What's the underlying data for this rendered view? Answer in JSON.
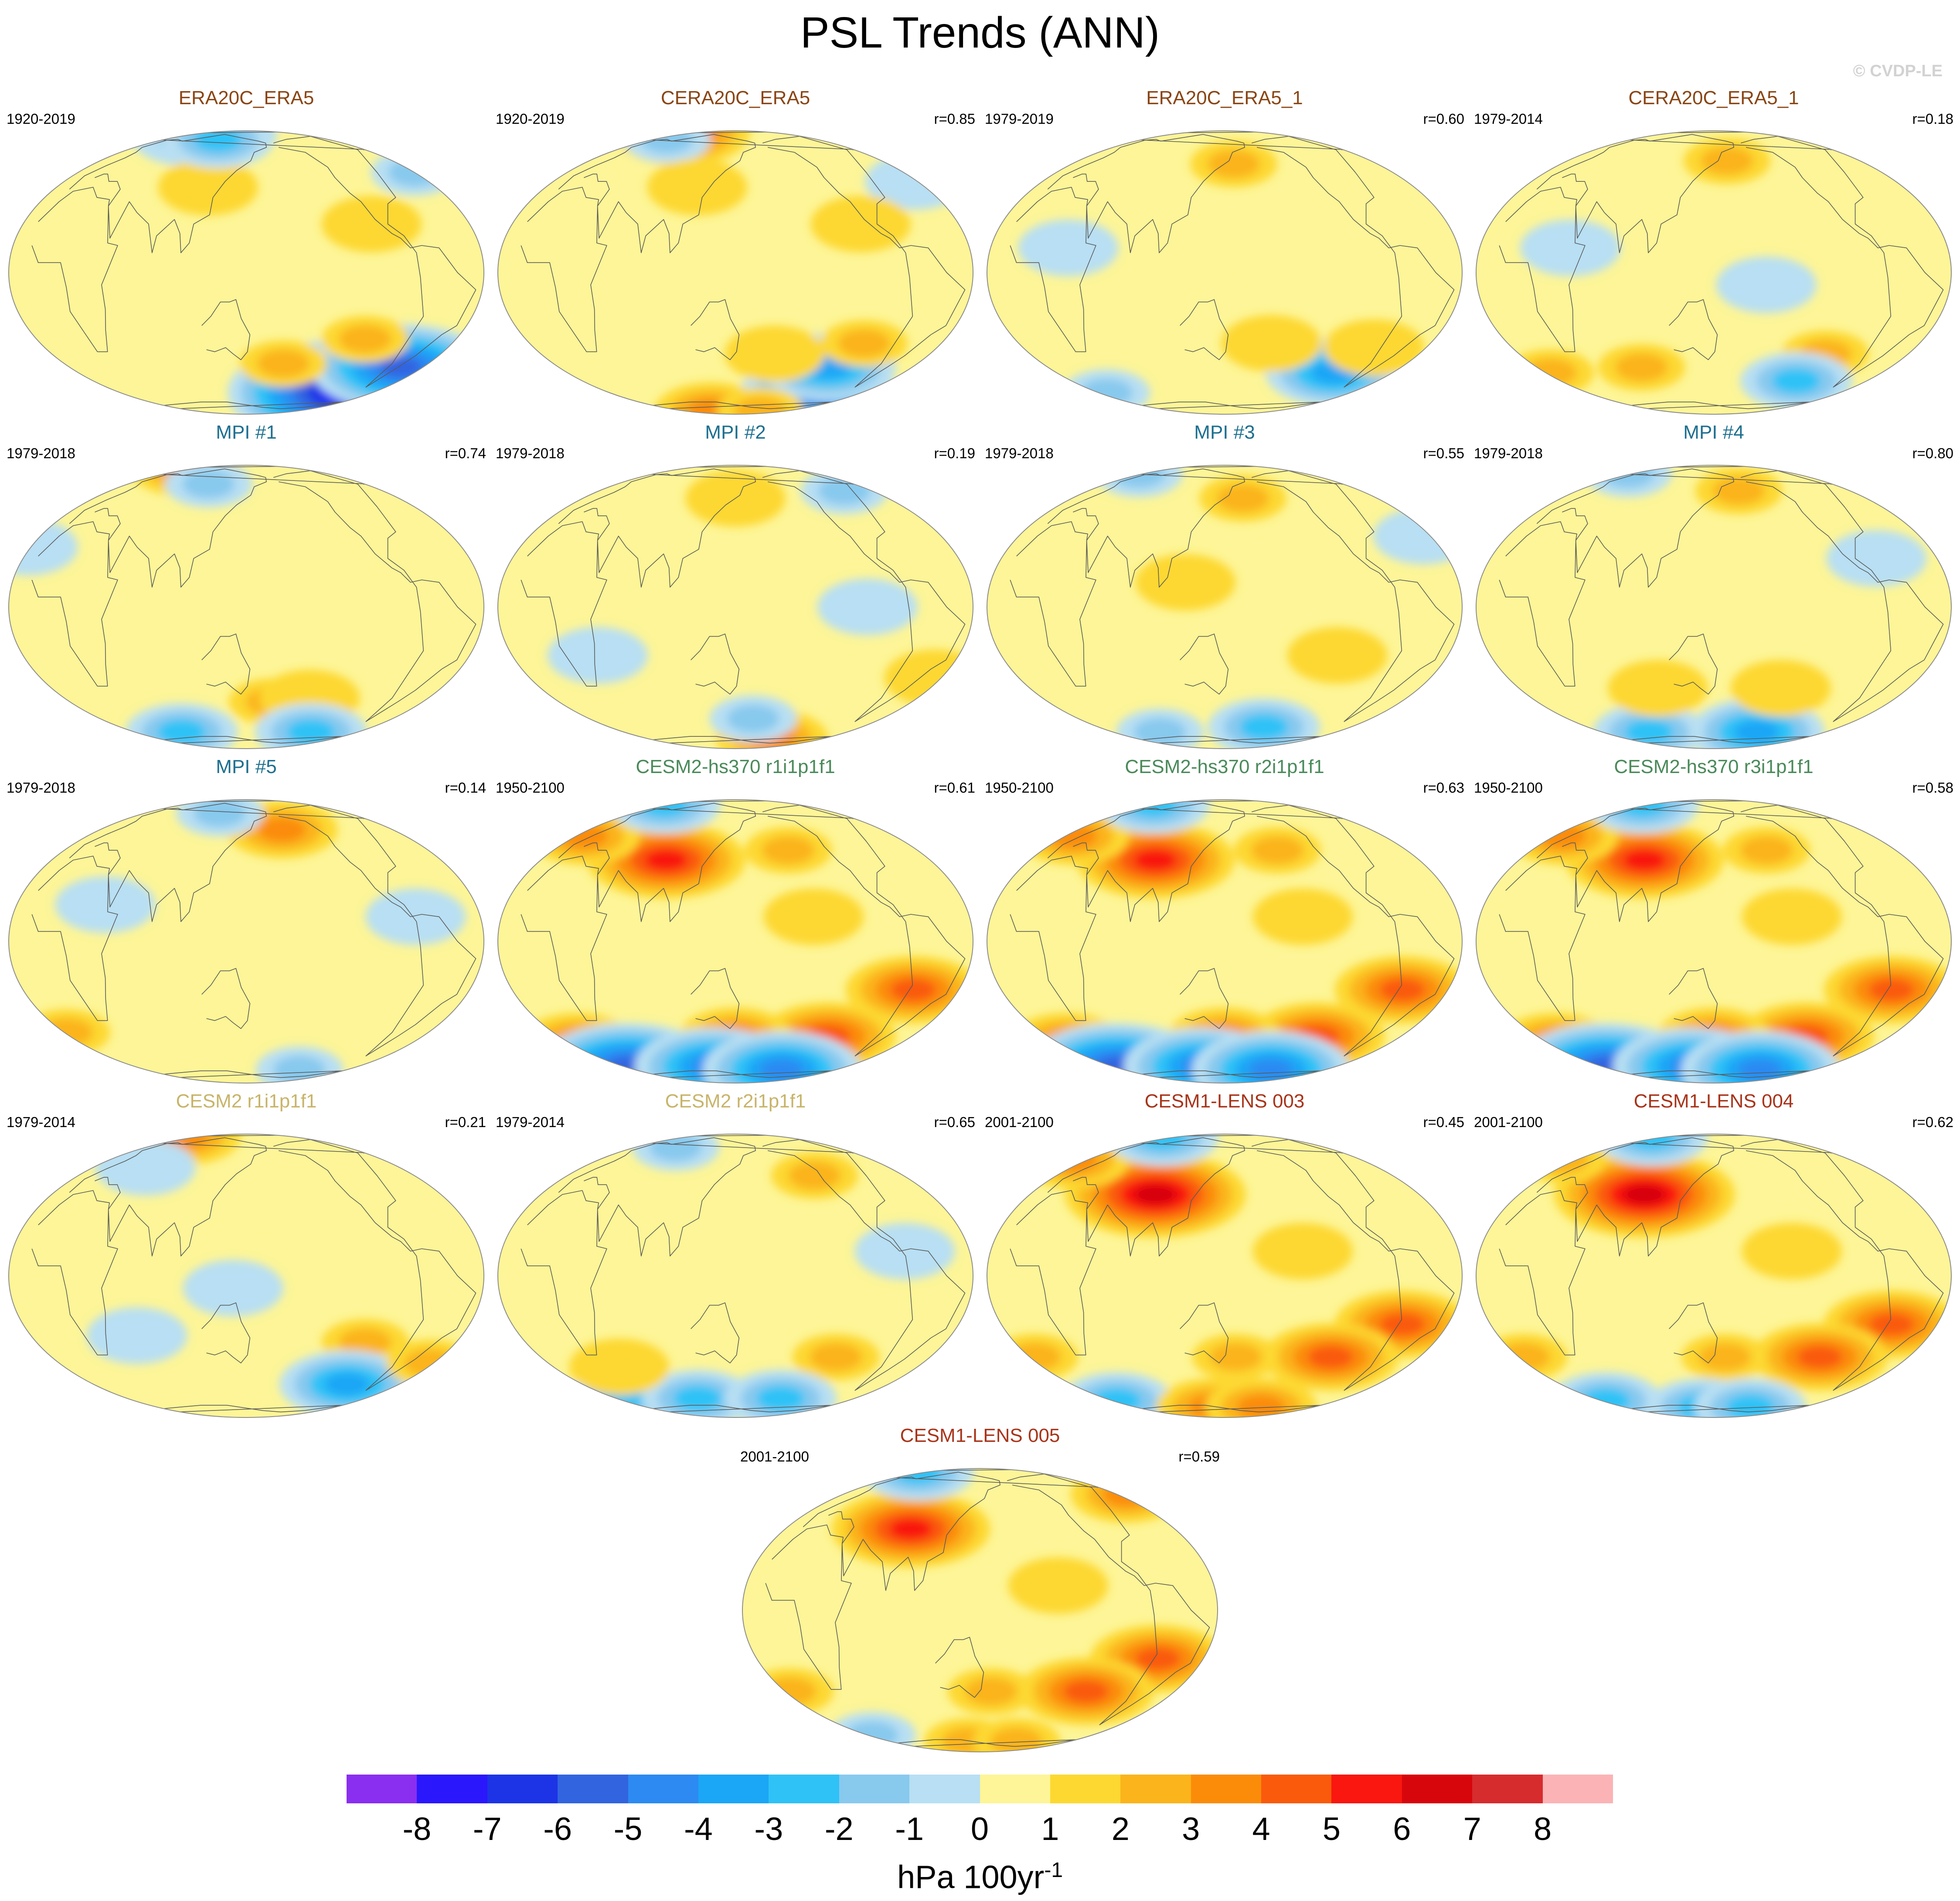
{
  "title": "PSL Trends (ANN)",
  "watermark": "© CVDP-LE",
  "palette": {
    "ocean": "#fdf597",
    "coast": "#5a5a5a",
    "outline": "#8c8c8c",
    "levels": [
      "#8a2ef0",
      "#2a17fb",
      "#1c34e6",
      "#3264e0",
      "#2c8af2",
      "#1ba6f6",
      "#2fc2f6",
      "#88c9ee",
      "#b8dff3",
      "#fdf597",
      "#fdd831",
      "#fbb41b",
      "#fb8c0a",
      "#fa5a0c",
      "#f9170f",
      "#d7050c",
      "#d62c2e",
      "#fbb3b6"
    ]
  },
  "chart_data": {
    "type": "map",
    "title": "PSL Trends (ANN)",
    "units": "hPa 100yr-1",
    "colorbar": {
      "ticks": [
        "-8",
        "-7",
        "-6",
        "-5",
        "-4",
        "-3",
        "-2",
        "-1",
        "0",
        "1",
        "2",
        "3",
        "4",
        "5",
        "6",
        "7",
        "8"
      ],
      "units_base": "hPa 100yr",
      "units_exp": "-1"
    },
    "panels": [
      {
        "name": "ERA20C_ERA5",
        "period": "1920-2019",
        "r": "",
        "color": "#8a4513",
        "features": [
          [
            -10,
            83,
            3
          ],
          [
            35,
            73,
            -3
          ],
          [
            60,
            78,
            -4
          ],
          [
            -40,
            45,
            -2
          ],
          [
            -90,
            -58,
            -8
          ],
          [
            -60,
            -42,
            -6
          ],
          [
            -110,
            -28,
            2
          ],
          [
            -175,
            -40,
            2
          ],
          [
            115,
            37,
            1
          ],
          [
            -110,
            20,
            1
          ],
          [
            100,
            70,
            -3
          ]
        ]
      },
      {
        "name": "CERA20C_ERA5",
        "period": "1920-2019",
        "r": "r=0.85",
        "color": "#8a4513",
        "features": [
          [
            -10,
            82,
            4
          ],
          [
            30,
            70,
            -2
          ],
          [
            -40,
            40,
            -1
          ],
          [
            -100,
            -60,
            -5
          ],
          [
            -120,
            -42,
            -4
          ],
          [
            -100,
            -30,
            2
          ],
          [
            -175,
            -35,
            1
          ],
          [
            90,
            -78,
            3
          ],
          [
            -150,
            -78,
            2
          ],
          [
            115,
            37,
            1
          ],
          [
            -110,
            20,
            1
          ]
        ]
      },
      {
        "name": "ERA20C_ERA5_1",
        "period": "1979-2019",
        "r": "r=0.60",
        "color": "#8a4513",
        "features": [
          [
            160,
            50,
            2
          ],
          [
            -100,
            -45,
            -4
          ],
          [
            -80,
            -32,
            1
          ],
          [
            -170,
            -30,
            1
          ],
          [
            0,
            -58,
            -2
          ],
          [
            30,
            10,
            -1
          ],
          [
            -160,
            5,
            0
          ]
        ]
      },
      {
        "name": "CERA20C_ERA5_1",
        "period": "1979-2014",
        "r": "r=0.18",
        "color": "#8a4513",
        "features": [
          [
            165,
            52,
            2
          ],
          [
            -110,
            -35,
            2
          ],
          [
            -120,
            -50,
            -3
          ],
          [
            -15,
            -45,
            2
          ],
          [
            80,
            -42,
            2
          ],
          [
            -170,
            -5,
            -1
          ],
          [
            40,
            10,
            -1
          ]
        ]
      },
      {
        "name": "MPI #1",
        "period": "1979-2018",
        "r": "r=0.74",
        "color": "#1d6f8f",
        "features": [
          [
            -15,
            80,
            3
          ],
          [
            175,
            -42,
            2
          ],
          [
            -150,
            -40,
            1
          ],
          [
            -120,
            -62,
            -3
          ],
          [
            60,
            -62,
            -3
          ],
          [
            100,
            60,
            -2
          ],
          [
            -30,
            25,
            -1
          ]
        ]
      },
      {
        "name": "MPI #2",
        "period": "1979-2018",
        "r": "r=0.19",
        "color": "#1d6f8f",
        "features": [
          [
            -150,
            -68,
            3
          ],
          [
            170,
            -52,
            -2
          ],
          [
            -80,
            55,
            -2
          ],
          [
            150,
            50,
            1
          ],
          [
            -40,
            -30,
            1
          ],
          [
            40,
            -20,
            -1
          ],
          [
            -110,
            0,
            -1
          ]
        ]
      },
      {
        "name": "MPI #3",
        "period": "1979-2018",
        "r": "r=0.55",
        "color": "#1d6f8f",
        "features": [
          [
            0,
            70,
            -2
          ],
          [
            170,
            50,
            2
          ],
          [
            -160,
            -58,
            -3
          ],
          [
            60,
            -62,
            -2
          ],
          [
            -120,
            -20,
            1
          ],
          [
            120,
            10,
            1
          ],
          [
            -40,
            30,
            -1
          ]
        ]
      },
      {
        "name": "MPI #4",
        "period": "1979-2018",
        "r": "r=0.80",
        "color": "#1d6f8f",
        "features": [
          [
            180,
            55,
            2
          ],
          [
            0,
            70,
            -2
          ],
          [
            -150,
            -62,
            -4
          ],
          [
            60,
            -62,
            -3
          ],
          [
            -150,
            -35,
            1
          ],
          [
            100,
            -35,
            1
          ],
          [
            -80,
            20,
            -1
          ]
        ]
      },
      {
        "name": "MPI #5",
        "period": "1979-2018",
        "r": "r=0.14",
        "color": "#1d6f8f",
        "features": [
          [
            -170,
            52,
            3
          ],
          [
            110,
            65,
            -2
          ],
          [
            -20,
            -40,
            2
          ],
          [
            -130,
            -65,
            -2
          ],
          [
            40,
            15,
            -1
          ],
          [
            -80,
            10,
            -1
          ],
          [
            150,
            -10,
            0
          ]
        ]
      },
      {
        "name": "CESM2-hs370 r1i1p1f1",
        "period": "1950-2100",
        "r": "r=0.61",
        "color": "#4a8a5a",
        "features": [
          [
            88,
            35,
            5
          ],
          [
            -10,
            48,
            3
          ],
          [
            -68,
            -20,
            4
          ],
          [
            -120,
            -42,
            4
          ],
          [
            150,
            -42,
            3
          ],
          [
            -10,
            -45,
            3
          ],
          [
            0,
            -62,
            -6
          ],
          [
            120,
            -62,
            -5
          ],
          [
            -140,
            -65,
            -5
          ],
          [
            0,
            75,
            -3
          ],
          [
            -150,
            10,
            1
          ],
          [
            -160,
            40,
            2
          ]
        ]
      },
      {
        "name": "CESM2-hs370 r2i1p1f1",
        "period": "1950-2100",
        "r": "r=0.63",
        "color": "#4a8a5a",
        "features": [
          [
            88,
            35,
            5
          ],
          [
            -10,
            48,
            3
          ],
          [
            -68,
            -20,
            4
          ],
          [
            -120,
            -42,
            4
          ],
          [
            150,
            -42,
            3
          ],
          [
            -10,
            -45,
            3
          ],
          [
            0,
            -62,
            -6
          ],
          [
            120,
            -62,
            -5
          ],
          [
            -140,
            -65,
            -5
          ],
          [
            0,
            75,
            -3
          ],
          [
            -150,
            10,
            1
          ],
          [
            -160,
            40,
            2
          ]
        ]
      },
      {
        "name": "CESM2-hs370 r3i1p1f1",
        "period": "1950-2100",
        "r": "r=0.58",
        "color": "#4a8a5a",
        "features": [
          [
            88,
            35,
            5
          ],
          [
            -10,
            48,
            3
          ],
          [
            -68,
            -20,
            4
          ],
          [
            -120,
            -42,
            4
          ],
          [
            150,
            -42,
            3
          ],
          [
            -10,
            -45,
            3
          ],
          [
            0,
            -62,
            -6
          ],
          [
            120,
            -62,
            -5
          ],
          [
            -140,
            -65,
            -5
          ],
          [
            0,
            75,
            -3
          ],
          [
            -150,
            10,
            1
          ],
          [
            -160,
            40,
            2
          ]
        ]
      },
      {
        "name": "CESM2 r1i1p1f1",
        "period": "1979-2014",
        "r": "r=0.21",
        "color": "#c8b46a",
        "features": [
          [
            -15,
            80,
            3
          ],
          [
            -110,
            -28,
            2
          ],
          [
            -100,
            -50,
            -4
          ],
          [
            -40,
            -38,
            2
          ],
          [
            40,
            50,
            -1
          ],
          [
            140,
            -5,
            -1
          ],
          [
            60,
            -25,
            -1
          ],
          [
            170,
            35,
            0
          ]
        ]
      },
      {
        "name": "CESM2 r2i1p1f1",
        "period": "1979-2014",
        "r": "r=0.65",
        "color": "#c8b46a",
        "features": [
          [
            -130,
            45,
            2
          ],
          [
            -120,
            -35,
            2
          ],
          [
            0,
            -60,
            -3
          ],
          [
            100,
            -60,
            -3
          ],
          [
            -150,
            -60,
            -3
          ],
          [
            60,
            65,
            -2
          ],
          [
            -80,
            10,
            -1
          ],
          [
            40,
            -40,
            1
          ]
        ]
      },
      {
        "name": "CESM1-LENS 003",
        "period": "2001-2100",
        "r": "r=0.45",
        "color": "#a8341a",
        "features": [
          [
            88,
            35,
            6
          ],
          [
            -30,
            55,
            3
          ],
          [
            -68,
            -20,
            4
          ],
          [
            -115,
            -35,
            4
          ],
          [
            160,
            -35,
            2
          ],
          [
            -20,
            -35,
            2
          ],
          [
            0,
            -62,
            -3
          ],
          [
            130,
            -68,
            3
          ],
          [
            -150,
            -68,
            3
          ],
          [
            0,
            78,
            -3
          ],
          [
            -150,
            10,
            1
          ]
        ]
      },
      {
        "name": "CESM1-LENS 004",
        "period": "2001-2100",
        "r": "r=0.62",
        "color": "#a8341a",
        "features": [
          [
            88,
            35,
            6
          ],
          [
            -30,
            55,
            2
          ],
          [
            -68,
            -20,
            4
          ],
          [
            -115,
            -35,
            4
          ],
          [
            160,
            -35,
            2
          ],
          [
            -20,
            -35,
            2
          ],
          [
            0,
            -62,
            -3
          ],
          [
            130,
            -68,
            -3
          ],
          [
            -150,
            -68,
            -3
          ],
          [
            0,
            78,
            -3
          ],
          [
            -150,
            10,
            1
          ]
        ]
      },
      {
        "name": "CESM1-LENS 005",
        "period": "2001-2100",
        "r": "r=0.59",
        "color": "#a8341a",
        "features": [
          [
            88,
            35,
            5
          ],
          [
            -35,
            55,
            3
          ],
          [
            -68,
            -20,
            4
          ],
          [
            -115,
            -35,
            4
          ],
          [
            160,
            -35,
            2
          ],
          [
            -20,
            -35,
            2
          ],
          [
            0,
            -62,
            -2
          ],
          [
            130,
            -68,
            2
          ],
          [
            -150,
            -68,
            2
          ],
          [
            0,
            78,
            -3
          ],
          [
            -150,
            10,
            1
          ]
        ]
      }
    ]
  }
}
